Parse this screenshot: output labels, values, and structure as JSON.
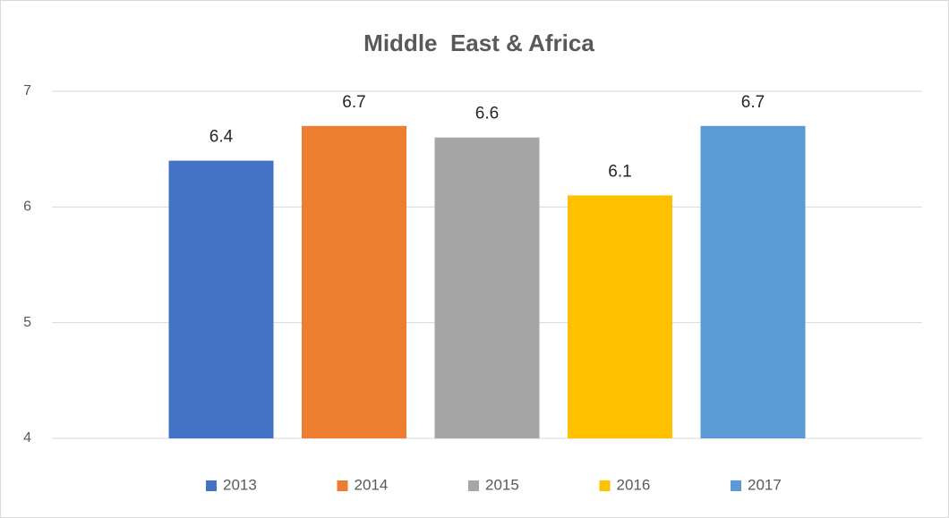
{
  "chart_data": {
    "type": "bar",
    "title": "Middle  East & Africa",
    "categories": [
      null
    ],
    "series": [
      {
        "name": "2013",
        "color": "#4472c4",
        "values": [
          6.4
        ]
      },
      {
        "name": "2014",
        "color": "#ed7d31",
        "values": [
          6.7
        ]
      },
      {
        "name": "2015",
        "color": "#a5a5a5",
        "values": [
          6.6
        ]
      },
      {
        "name": "2016",
        "color": "#ffc000",
        "values": [
          6.1
        ]
      },
      {
        "name": "2017",
        "color": "#5b9bd5",
        "values": [
          6.7
        ]
      }
    ],
    "ylim": [
      4,
      7
    ],
    "yticks": [
      4,
      5,
      6,
      7
    ],
    "grid": true,
    "legend": "bottom"
  }
}
